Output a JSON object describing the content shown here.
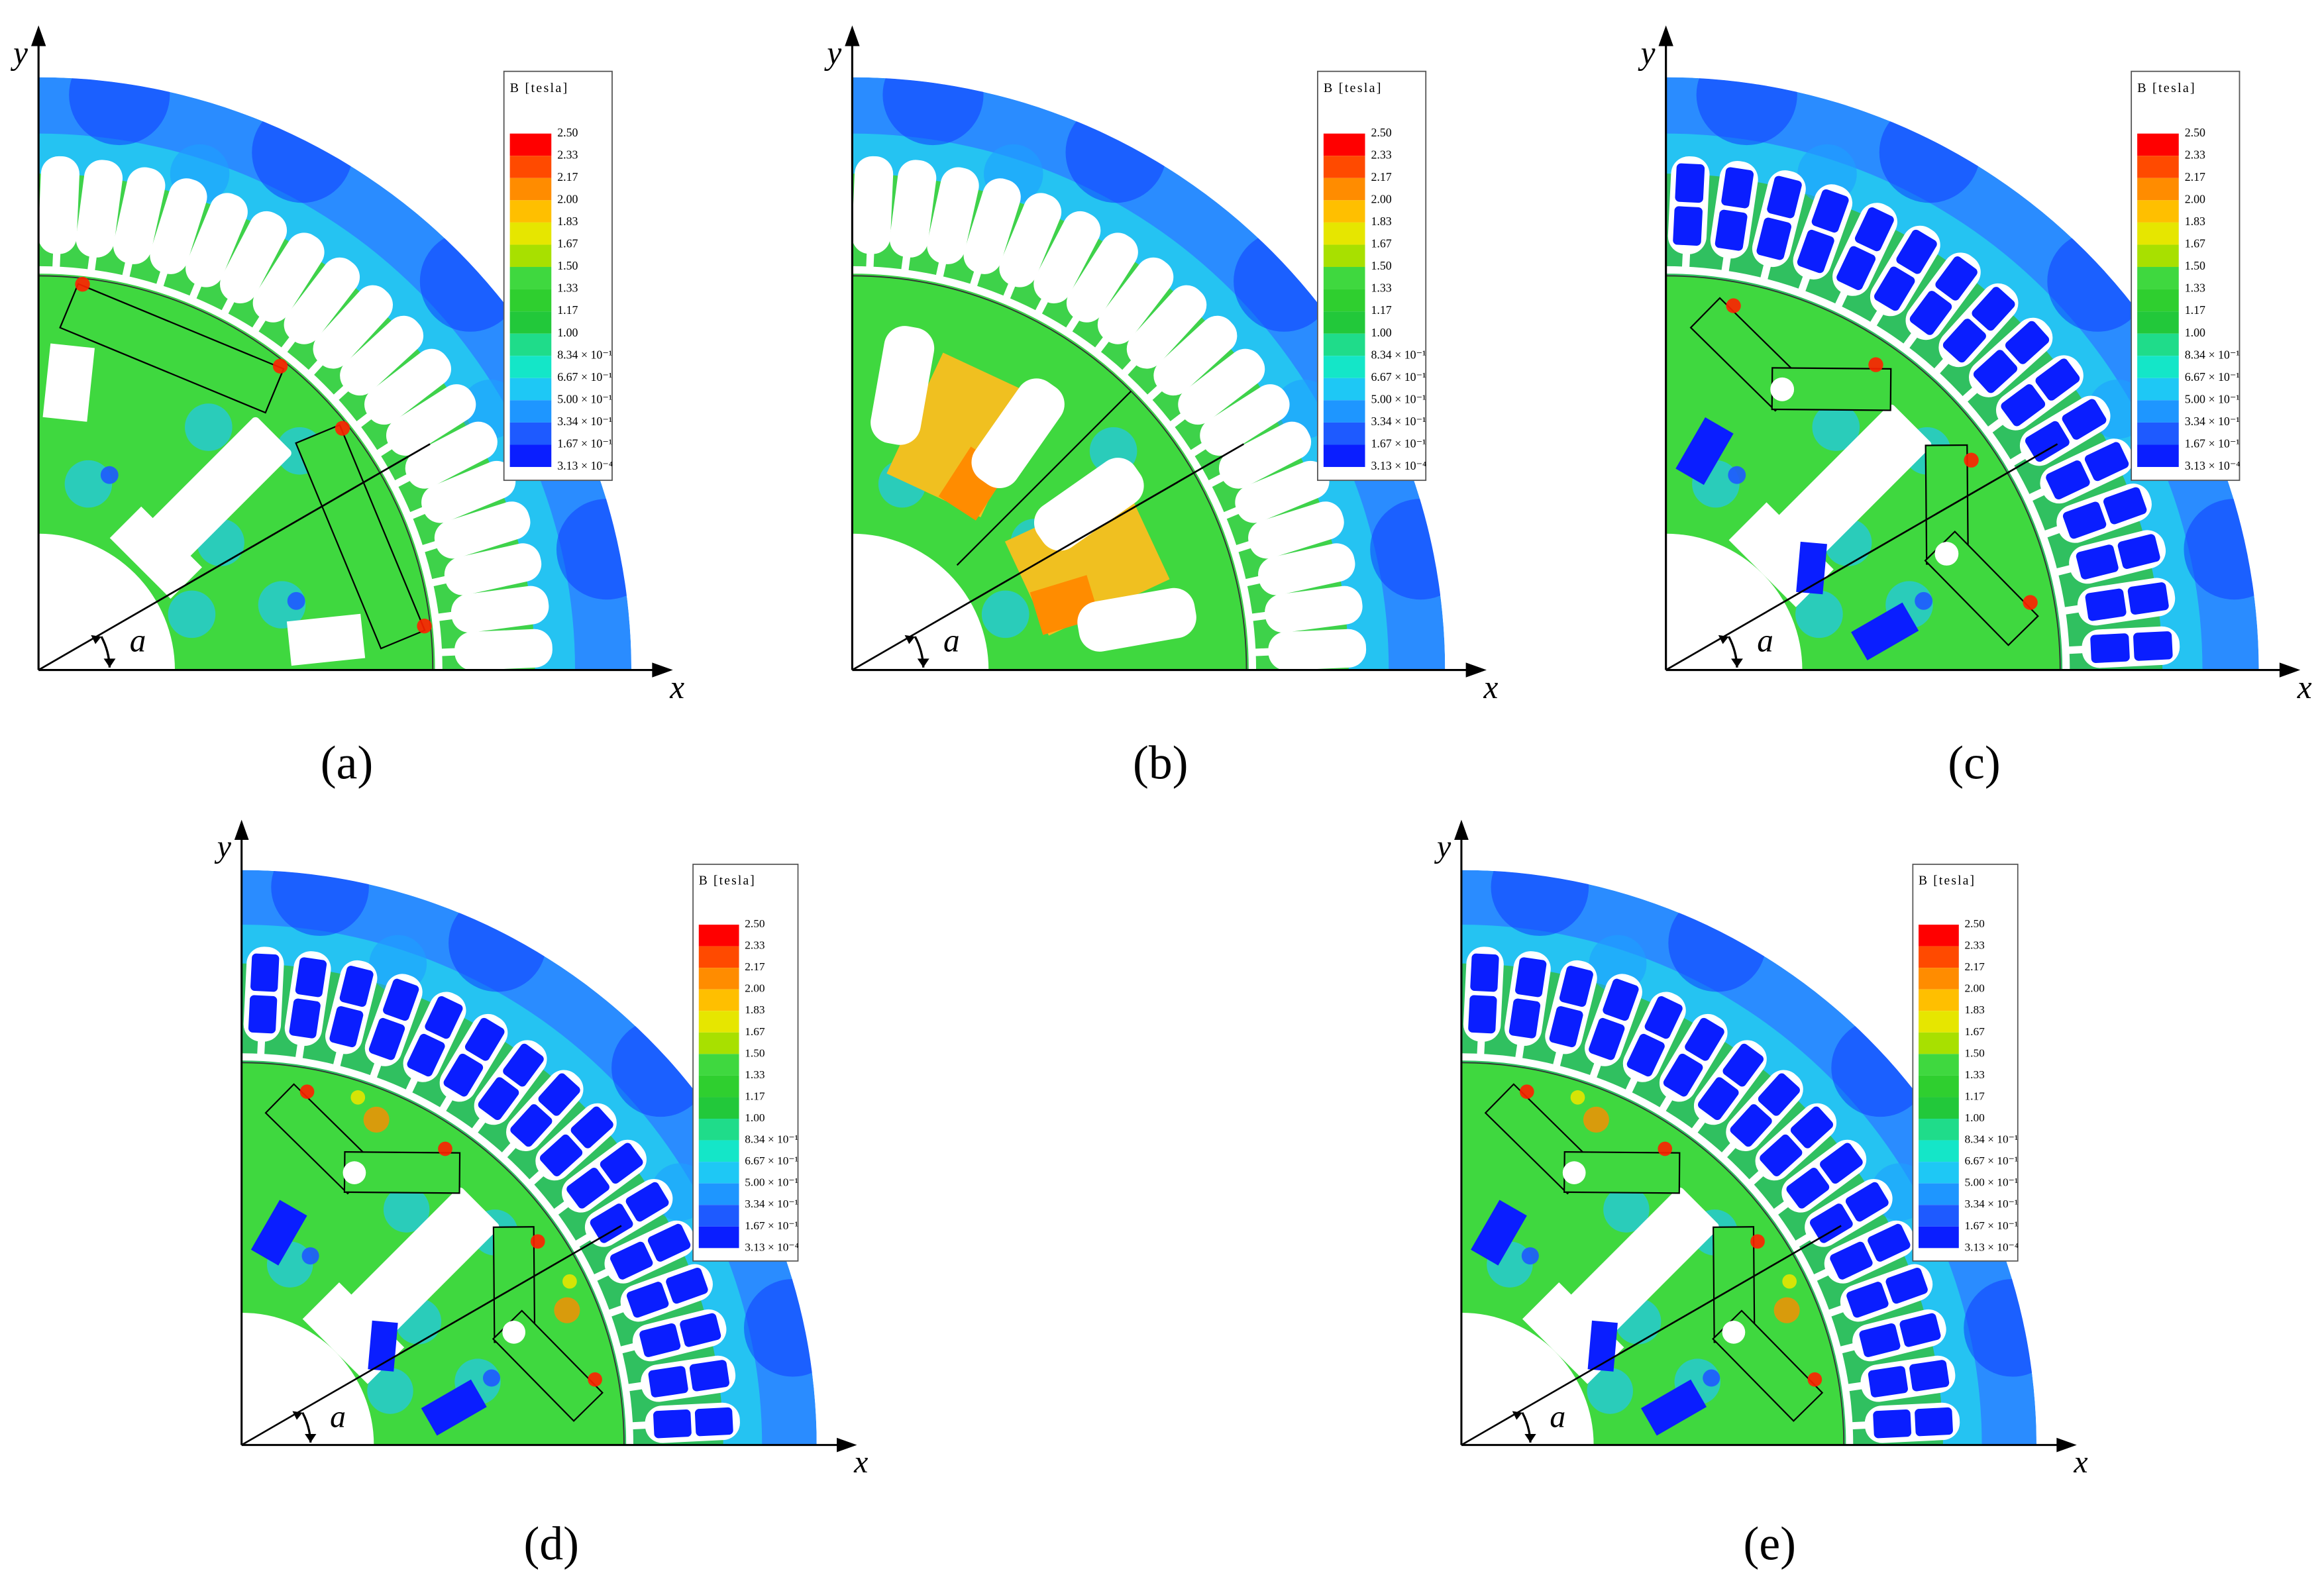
{
  "panels": [
    {
      "label": "(a)",
      "x_axis": "x",
      "y_axis": "y",
      "angle": "a"
    },
    {
      "label": "(b)",
      "x_axis": "x",
      "y_axis": "y",
      "angle": "a"
    },
    {
      "label": "(c)",
      "x_axis": "x",
      "y_axis": "y",
      "angle": "a"
    },
    {
      "label": "(d)",
      "x_axis": "x",
      "y_axis": "y",
      "angle": "a"
    },
    {
      "label": "(e)",
      "x_axis": "x",
      "y_axis": "y",
      "angle": "a"
    }
  ],
  "legend": {
    "title": "B [tesla]",
    "labels": [
      "2.50",
      "2.33",
      "2.17",
      "2.00",
      "1.83",
      "1.67",
      "1.50",
      "1.33",
      "1.17",
      "1.00",
      "8.34 × 10⁻¹",
      "6.67 × 10⁻¹",
      "5.00 × 10⁻¹",
      "3.34 × 10⁻¹",
      "1.67 × 10⁻¹",
      "3.13 × 10⁻⁴"
    ],
    "colors": [
      "#ff0000",
      "#ff4a00",
      "#ff8c00",
      "#ffbf00",
      "#e6e600",
      "#a8e000",
      "#3fd83f",
      "#2fcf2f",
      "#22c83a",
      "#1fdc8a",
      "#14e6c8",
      "#1ec8f5",
      "#1e96ff",
      "#1e5aff",
      "#0a1eff"
    ]
  }
}
